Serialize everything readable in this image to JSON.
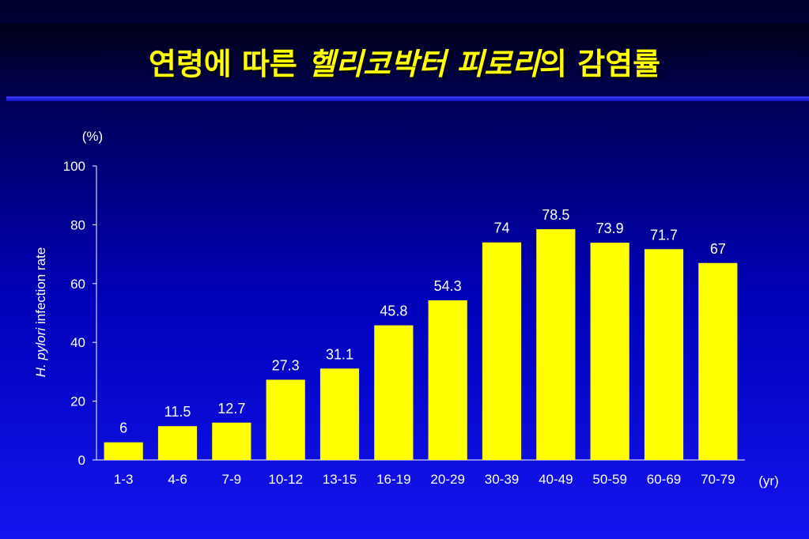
{
  "title": {
    "part1": "연령에 따른 ",
    "part2": "헬리코박터 피로리",
    "part3": "의 감염률"
  },
  "chart_data": {
    "type": "bar",
    "categories": [
      "1-3",
      "4-6",
      "7-9",
      "10-12",
      "13-15",
      "16-19",
      "20-29",
      "30-39",
      "40-49",
      "50-59",
      "60-69",
      "70-79"
    ],
    "values": [
      6,
      11.5,
      12.7,
      27.3,
      31.1,
      45.8,
      54.3,
      74,
      78.5,
      73.9,
      71.7,
      67
    ],
    "value_labels": [
      "6",
      "11.5",
      "12.7",
      "27.3",
      "31.1",
      "45.8",
      "54.3",
      "74",
      "78.5",
      "73.9",
      "71.7",
      "67"
    ],
    "ylabel_italic": "H. pylori",
    "ylabel": "infection rate",
    "y_unit": "(%)",
    "x_unit": "(yr)",
    "ylim": [
      0,
      100
    ],
    "yticks": [
      0,
      20,
      40,
      60,
      80,
      100
    ],
    "bar_color": "#ffff00",
    "grid": false
  }
}
